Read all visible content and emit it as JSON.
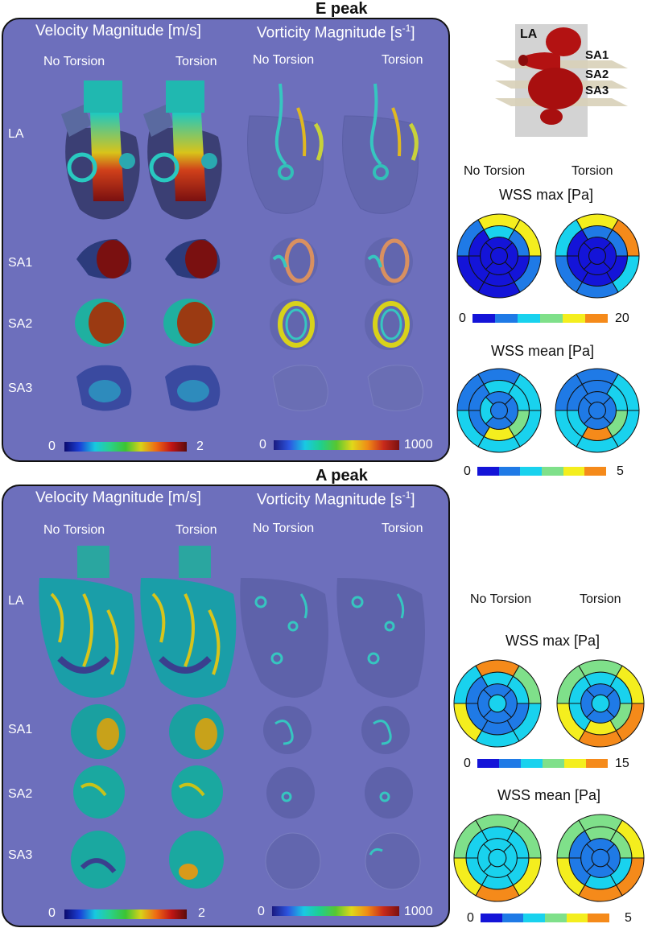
{
  "e_peak": {
    "title": "E peak",
    "velocity_header": "Velocity Magnitude [m/s]",
    "vorticity_header_main": "Vorticity Magnitude [s",
    "vorticity_header_exp": "-1",
    "vorticity_header_tail": "]",
    "col_no_torsion": "No Torsion",
    "col_torsion": "Torsion",
    "rows": [
      "LA",
      "SA1",
      "SA2",
      "SA3"
    ],
    "velocity_scale": {
      "min": "0",
      "max": "2"
    },
    "vorticity_scale": {
      "min": "0",
      "max": "1000"
    },
    "wss": {
      "no_torsion": "No Torsion",
      "torsion": "Torsion",
      "max_title": "WSS max [Pa]",
      "max_scale": {
        "min": "0",
        "max": "20"
      },
      "mean_title": "WSS mean [Pa]",
      "mean_scale": {
        "min": "0",
        "max": "5"
      }
    }
  },
  "a_peak": {
    "title": "A peak",
    "velocity_header": "Velocity Magnitude [m/s]",
    "vorticity_header_main": "Vorticity Magnitude [s",
    "vorticity_header_exp": "-1",
    "vorticity_header_tail": "]",
    "col_no_torsion": "No Torsion",
    "col_torsion": "Torsion",
    "rows": [
      "LA",
      "SA1",
      "SA2",
      "SA3"
    ],
    "velocity_scale": {
      "min": "0",
      "max": "2"
    },
    "vorticity_scale": {
      "min": "0",
      "max": "1000"
    },
    "wss": {
      "no_torsion": "No Torsion",
      "torsion": "Torsion",
      "max_title": "WSS max [Pa]",
      "max_scale": {
        "min": "0",
        "max": "15"
      },
      "mean_title": "WSS mean [Pa]",
      "mean_scale": {
        "min": "0",
        "max": "5"
      }
    }
  },
  "schematic": {
    "labels": [
      "LA",
      "SA1",
      "SA2",
      "SA3"
    ]
  },
  "colors": {
    "panel_bg": "#6d6fbc",
    "wss_scale": [
      "#1414d8",
      "#1f7ae6",
      "#19d2ee",
      "#7fe08a",
      "#f4ee1e",
      "#f58a1a"
    ]
  },
  "bullseyes": {
    "e_max_no": {
      "ring1": [
        4,
        4,
        1,
        0,
        0,
        1
      ],
      "ring2": [
        2,
        1,
        0,
        0,
        0,
        0
      ],
      "ring3": [
        0,
        0,
        0,
        0
      ],
      "apex": 0
    },
    "e_max_tor": {
      "ring1": [
        4,
        5,
        2,
        1,
        1,
        2
      ],
      "ring2": [
        1,
        1,
        0,
        0,
        0,
        0
      ],
      "ring3": [
        0,
        0,
        0,
        0
      ],
      "apex": 0
    },
    "e_mean_no": {
      "ring1": [
        1,
        2,
        2,
        2,
        2,
        1
      ],
      "ring2": [
        2,
        2,
        3,
        4,
        1,
        1
      ],
      "ring3": [
        1,
        1,
        1,
        2
      ],
      "apex": 1
    },
    "e_mean_tor": {
      "ring1": [
        1,
        2,
        2,
        2,
        2,
        1
      ],
      "ring2": [
        1,
        2,
        3,
        5,
        2,
        1
      ],
      "ring3": [
        1,
        1,
        1,
        1
      ],
      "apex": 1
    },
    "a_max_no": {
      "ring1": [
        5,
        3,
        2,
        2,
        4,
        2
      ],
      "ring2": [
        2,
        2,
        1,
        1,
        1,
        1
      ],
      "ring3": [
        1,
        1,
        1,
        1
      ],
      "apex": 2
    },
    "a_max_tor": {
      "ring1": [
        3,
        4,
        5,
        5,
        4,
        3
      ],
      "ring2": [
        2,
        2,
        3,
        4,
        2,
        2
      ],
      "ring3": [
        1,
        1,
        1,
        1
      ],
      "apex": 2
    },
    "a_mean_no": {
      "ring1": [
        3,
        3,
        4,
        5,
        4,
        3
      ],
      "ring2": [
        2,
        2,
        2,
        2,
        2,
        2
      ],
      "ring3": [
        2,
        2,
        2,
        2
      ],
      "apex": 2
    },
    "a_mean_tor": {
      "ring1": [
        3,
        4,
        5,
        5,
        4,
        3
      ],
      "ring2": [
        3,
        3,
        2,
        2,
        1,
        1
      ],
      "ring3": [
        1,
        1,
        1,
        1
      ],
      "apex": 1
    }
  }
}
